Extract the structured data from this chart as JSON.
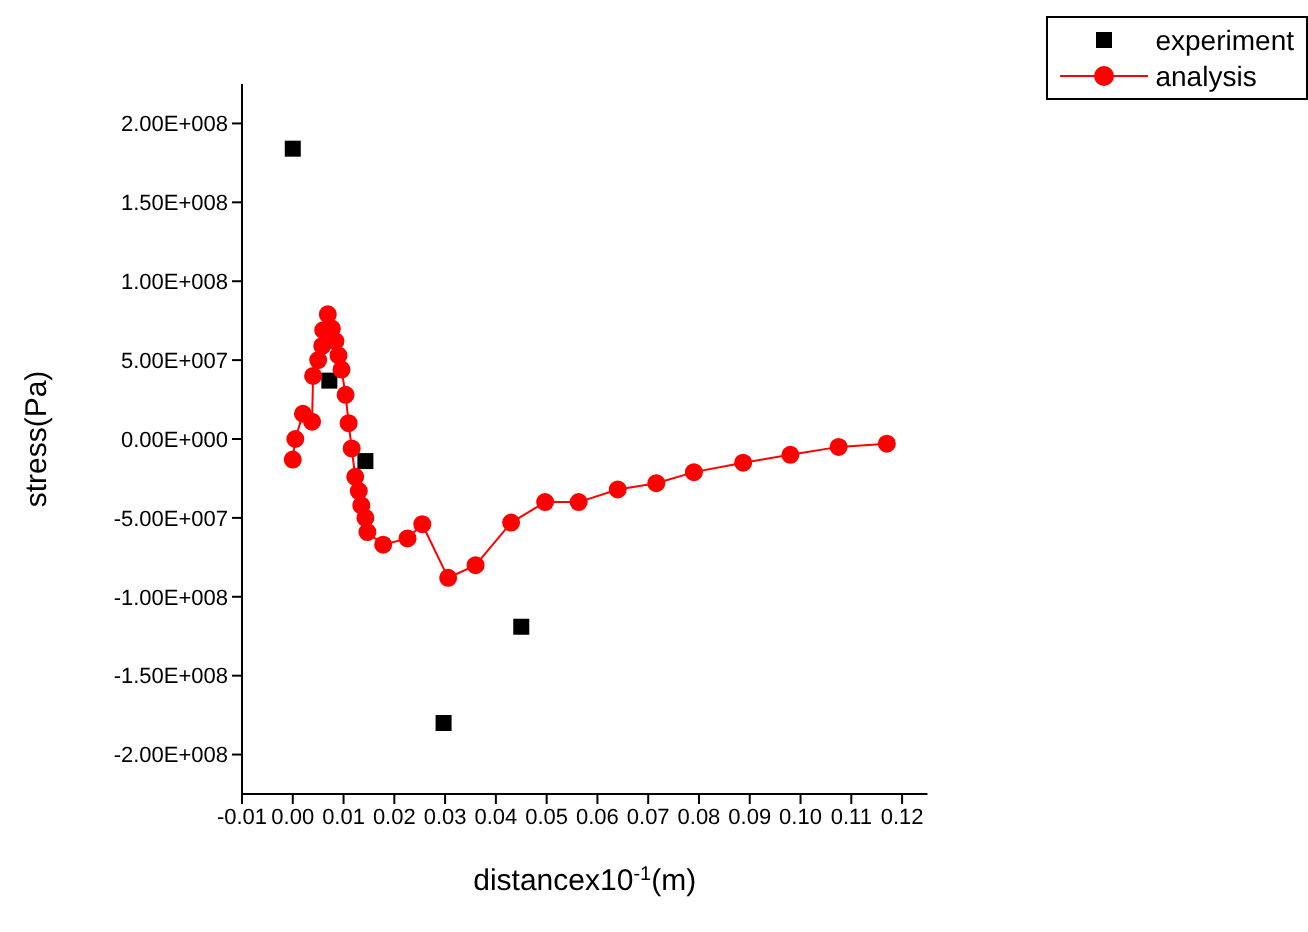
{
  "chart_data": {
    "type": "scatter",
    "xlabel": "distancex10$^{-1}$(m)",
    "ylabel": "stress(Pa)",
    "legend": "top right",
    "grid": false,
    "xlim": [
      -0.01,
      0.125
    ],
    "xticks": [
      {
        "value": -0.01,
        "label": "-0.01"
      },
      {
        "value": 0,
        "label": "0.00"
      },
      {
        "value": 0.01,
        "label": "0.01"
      },
      {
        "value": 0.02,
        "label": "0.02"
      },
      {
        "value": 0.03,
        "label": "0.03"
      },
      {
        "value": 0.04,
        "label": "0.04"
      },
      {
        "value": 0.05,
        "label": "0.05"
      },
      {
        "value": 0.06,
        "label": "0.06"
      },
      {
        "value": 0.07,
        "label": "0.07"
      },
      {
        "value": 0.08,
        "label": "0.08"
      },
      {
        "value": 0.09,
        "label": "0.09"
      },
      {
        "value": 0.1,
        "label": "0.10"
      },
      {
        "value": 0.11,
        "label": "0.11"
      },
      {
        "value": 0.12,
        "label": "0.12"
      }
    ],
    "ylim": [
      -225000000,
      225000000
    ],
    "yticks": [
      {
        "value": -200000000,
        "label": "-2.00E+008"
      },
      {
        "value": -150000000,
        "label": "-1.50E+008"
      },
      {
        "value": -100000000,
        "label": "-1.00E+008"
      },
      {
        "value": -50000000,
        "label": "-5.00E+007"
      },
      {
        "value": 0,
        "label": "0.00E+000"
      },
      {
        "value": 50000000,
        "label": "5.00E+007"
      },
      {
        "value": 100000000,
        "label": "1.00E+008"
      },
      {
        "value": 150000000,
        "label": "1.50E+008"
      },
      {
        "value": 200000000,
        "label": "2.00E+008"
      }
    ],
    "series": [
      {
        "name": "experiment",
        "marker": "square",
        "color": "#000000",
        "x": [
          0.0,
          0.0072,
          0.0143,
          0.0297,
          0.045
        ],
        "values": [
          184000000,
          37000000,
          -14000000,
          -180000000,
          -119000000
        ]
      },
      {
        "name": "analysis",
        "type": "line",
        "marker": "circle",
        "line_style": "solid",
        "color": "#ff0000",
        "x": [
          0.0,
          0.0005,
          0.002,
          0.0038,
          0.004,
          0.005,
          0.0058,
          0.006,
          0.0069,
          0.0077,
          0.0084,
          0.009,
          0.0096,
          0.0104,
          0.011,
          0.0116,
          0.0123,
          0.013,
          0.0135,
          0.0143,
          0.0147,
          0.0178,
          0.0226,
          0.0255,
          0.0306,
          0.036,
          0.043,
          0.0497,
          0.0563,
          0.064,
          0.0716,
          0.079,
          0.0887,
          0.098,
          0.1075,
          0.117
        ],
        "values": [
          -13000000,
          0,
          16000000,
          11000000,
          40000000,
          50000000,
          59000000,
          69000000,
          79000000,
          70000000,
          62000000,
          53000000,
          44000000,
          28000000,
          10000000,
          -6000000,
          -24000000,
          -33000000,
          -42000000,
          -50000000,
          -59000000,
          -67000000,
          -63000000,
          -54000000,
          -88000000,
          -80000000,
          -53000000,
          -40000000,
          -40000000,
          -32000000,
          -28000000,
          -21000000,
          -15000000,
          -10000000,
          -5000000,
          -3000000
        ]
      }
    ]
  }
}
